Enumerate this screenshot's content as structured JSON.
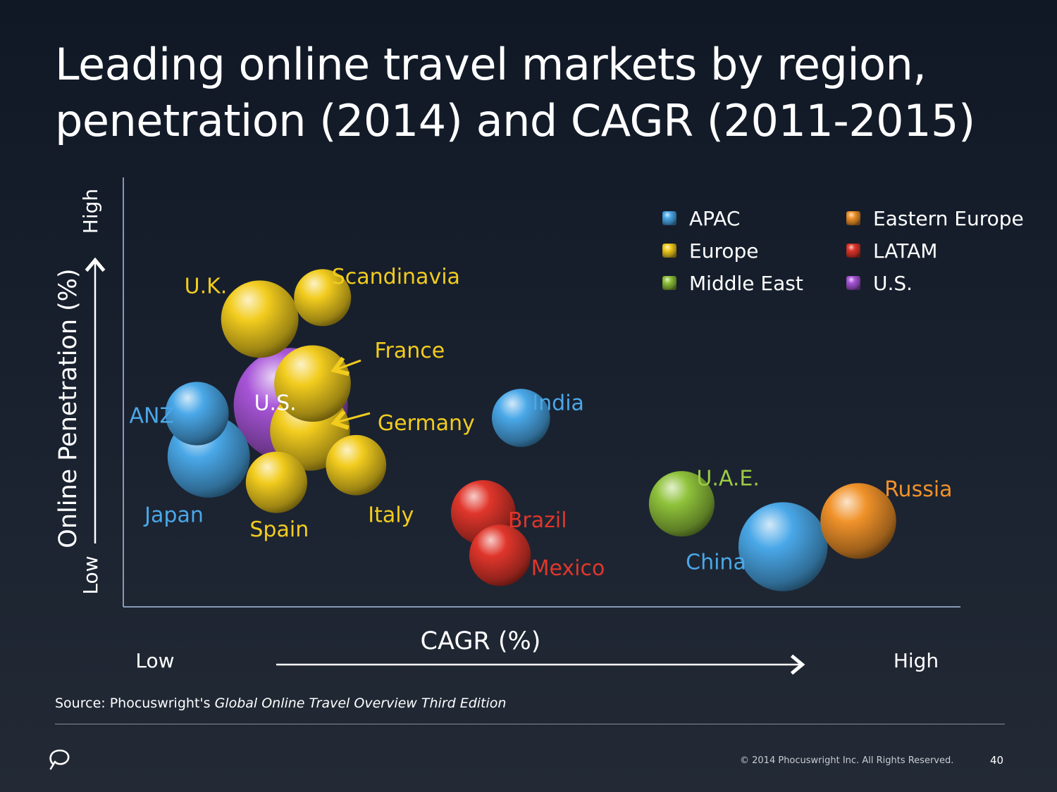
{
  "title": {
    "line1": "Leading online travel markets by region,",
    "line2": "penetration (2014) and CAGR (2011-2015)"
  },
  "chart_data": {
    "type": "scatter",
    "variant": "bubble",
    "xlabel": "CAGR (%)",
    "ylabel": "Online Penetration (%)",
    "x_low_label": "Low",
    "x_high_label": "High",
    "y_low_label": "Low",
    "y_high_label": "High",
    "xlim": [
      0,
      100
    ],
    "ylim": [
      0,
      100
    ],
    "grid": false,
    "legend_position": "top-right",
    "legend": [
      {
        "name": "APAC",
        "color": "#4aa8e8"
      },
      {
        "name": "Eastern Europe",
        "color": "#f0922a"
      },
      {
        "name": "Europe",
        "color": "#f2cc1e"
      },
      {
        "name": "LATAM",
        "color": "#e0362b"
      },
      {
        "name": "Middle East",
        "color": "#8fc23b"
      },
      {
        "name": "U.S.",
        "color": "#a855d8"
      }
    ],
    "points": [
      {
        "label": "U.S.",
        "region": "U.S.",
        "x": 20,
        "y": 47,
        "size": 100,
        "color": "#a855d8"
      },
      {
        "label": "U.K.",
        "region": "Europe",
        "x": 16.3,
        "y": 67,
        "size": 46,
        "color": "#f2cc1e"
      },
      {
        "label": "Scandinavia",
        "region": "Europe",
        "x": 23.8,
        "y": 72,
        "size": 25,
        "color": "#f2cc1e"
      },
      {
        "label": "France",
        "region": "Europe",
        "x": 22.6,
        "y": 52,
        "size": 45,
        "color": "#f2cc1e"
      },
      {
        "label": "Germany",
        "region": "Europe",
        "x": 22.3,
        "y": 41,
        "size": 49,
        "color": "#f2cc1e"
      },
      {
        "label": "ANZ",
        "region": "APAC",
        "x": 8.8,
        "y": 45,
        "size": 31,
        "color": "#4aa8e8"
      },
      {
        "label": "Japan",
        "region": "APAC",
        "x": 10.2,
        "y": 35,
        "size": 52,
        "color": "#4aa8e8"
      },
      {
        "label": "Spain",
        "region": "Europe",
        "x": 18.3,
        "y": 29,
        "size": 29,
        "color": "#f2cc1e"
      },
      {
        "label": "Italy",
        "region": "Europe",
        "x": 27.8,
        "y": 33,
        "size": 28,
        "color": "#f2cc1e"
      },
      {
        "label": "India",
        "region": "APAC",
        "x": 47.5,
        "y": 44,
        "size": 26,
        "color": "#4aa8e8"
      },
      {
        "label": "Brazil",
        "region": "LATAM",
        "x": 43,
        "y": 22,
        "size": 32,
        "color": "#e0362b"
      },
      {
        "label": "Mexico",
        "region": "LATAM",
        "x": 45,
        "y": 12,
        "size": 29,
        "color": "#e0362b"
      },
      {
        "label": "U.A.E.",
        "region": "Middle East",
        "x": 66.7,
        "y": 24,
        "size": 33,
        "color": "#8fc23b"
      },
      {
        "label": "China",
        "region": "APAC",
        "x": 78.8,
        "y": 14,
        "size": 61,
        "color": "#4aa8e8"
      },
      {
        "label": "Russia",
        "region": "Eastern Europe",
        "x": 87.8,
        "y": 20,
        "size": 44,
        "color": "#f0922a"
      }
    ]
  },
  "source": {
    "prefix": "Source: Phocuswright's ",
    "italic": "Global Online Travel Overview Third Edition"
  },
  "footer": {
    "copyright": "© 2014 Phocuswright Inc. All Rights Reserved.",
    "page": "40"
  },
  "icons": {
    "logo": "phocuswright-logo-icon"
  }
}
